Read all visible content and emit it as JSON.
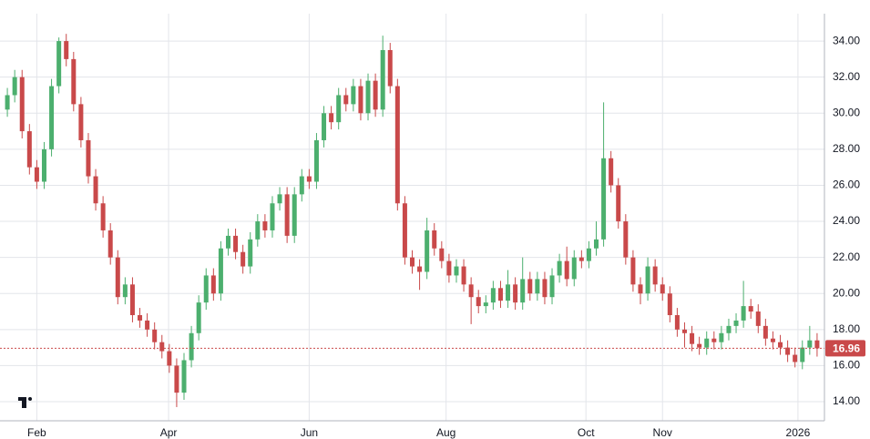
{
  "chart_data": {
    "type": "candlestick",
    "x": [
      1,
      2,
      3,
      4,
      5,
      6,
      7,
      8,
      9,
      10,
      11,
      12,
      13,
      14,
      15,
      16,
      17,
      18,
      19,
      20,
      21,
      22,
      23,
      24,
      25,
      26,
      27,
      28,
      29,
      30,
      31,
      32,
      33,
      34,
      35,
      36,
      37,
      38,
      39,
      40,
      41,
      42,
      43,
      44,
      45,
      46,
      47,
      48,
      49,
      50,
      51,
      52,
      53,
      54,
      55,
      56,
      57,
      58,
      59,
      60,
      61,
      62,
      63,
      64,
      65,
      66,
      67,
      68,
      69,
      70,
      71,
      72,
      73,
      74,
      75,
      76,
      77,
      78,
      79,
      80,
      81,
      82,
      83,
      84,
      85,
      86,
      87,
      88,
      89,
      90,
      91,
      92,
      93,
      94,
      95,
      96,
      97,
      98,
      99,
      100,
      101,
      102,
      103,
      104,
      105,
      106,
      107,
      108,
      109,
      110,
      111
    ],
    "open": [
      30.2,
      31.0,
      32.0,
      29.0,
      27.0,
      26.2,
      28.0,
      31.5,
      34.0,
      33.0,
      30.5,
      28.5,
      26.5,
      25.0,
      23.5,
      22.0,
      19.8,
      20.5,
      18.8,
      18.5,
      18.0,
      17.3,
      16.8,
      16.0,
      14.5,
      16.3,
      17.8,
      19.5,
      21.0,
      20.0,
      22.5,
      23.2,
      22.3,
      21.5,
      23.0,
      24.0,
      23.5,
      25.0,
      25.5,
      23.2,
      25.5,
      26.5,
      26.2,
      28.5,
      30.0,
      29.5,
      31.0,
      30.5,
      31.5,
      30.0,
      31.8,
      30.2,
      33.5,
      31.5,
      25.0,
      22.0,
      21.5,
      21.2,
      23.5,
      22.5,
      21.8,
      21.0,
      21.5,
      20.5,
      19.8,
      19.3,
      19.5,
      20.3,
      19.6,
      20.5,
      19.5,
      20.8,
      20.0,
      20.8,
      19.8,
      21.0,
      21.8,
      20.8,
      22.0,
      21.8,
      22.5,
      23.0,
      27.5,
      26.0,
      24.0,
      22.0,
      20.5,
      20.0,
      21.5,
      20.5,
      20.0,
      18.8,
      18.0,
      17.8,
      17.2,
      17.0,
      17.5,
      17.3,
      17.8,
      18.2,
      18.5,
      19.3,
      19.0,
      18.2,
      17.5,
      17.3,
      17.0,
      16.6,
      16.2,
      17.0,
      17.4
    ],
    "high": [
      31.4,
      32.4,
      32.4,
      29.4,
      27.4,
      28.4,
      31.9,
      34.2,
      34.4,
      33.4,
      30.9,
      28.9,
      26.9,
      25.4,
      23.9,
      22.4,
      20.9,
      20.9,
      19.2,
      18.9,
      18.4,
      17.7,
      17.2,
      16.4,
      16.7,
      18.2,
      19.9,
      21.4,
      21.4,
      22.9,
      23.6,
      23.6,
      22.7,
      23.4,
      24.4,
      24.4,
      25.4,
      25.9,
      25.9,
      25.9,
      26.9,
      26.9,
      28.9,
      30.4,
      30.4,
      31.4,
      31.4,
      31.9,
      31.9,
      32.2,
      32.2,
      34.3,
      33.9,
      31.9,
      25.4,
      22.4,
      21.9,
      24.2,
      23.9,
      22.9,
      22.2,
      21.9,
      21.9,
      20.9,
      20.2,
      19.9,
      20.7,
      20.7,
      21.3,
      20.9,
      22.0,
      21.2,
      21.2,
      21.2,
      21.4,
      22.2,
      22.6,
      22.4,
      22.4,
      22.9,
      24.0,
      30.6,
      27.9,
      26.4,
      24.4,
      22.4,
      20.9,
      22.0,
      21.9,
      20.9,
      20.4,
      19.2,
      18.4,
      18.2,
      17.6,
      17.9,
      17.9,
      18.2,
      18.6,
      18.9,
      20.7,
      19.7,
      19.4,
      18.6,
      17.9,
      17.7,
      17.4,
      17.0,
      17.4,
      18.2,
      17.8
    ],
    "low": [
      29.8,
      30.6,
      28.6,
      26.6,
      25.8,
      25.8,
      27.6,
      31.1,
      32.6,
      30.1,
      28.1,
      26.1,
      24.6,
      23.1,
      21.6,
      19.4,
      19.4,
      18.4,
      18.1,
      17.6,
      16.9,
      16.4,
      15.6,
      13.7,
      14.1,
      15.9,
      17.4,
      19.1,
      19.6,
      19.6,
      22.1,
      21.9,
      21.1,
      21.1,
      22.6,
      23.1,
      23.1,
      24.6,
      22.8,
      22.8,
      25.1,
      25.8,
      25.8,
      28.1,
      29.1,
      29.1,
      30.1,
      30.1,
      29.6,
      29.6,
      29.8,
      29.8,
      31.1,
      24.6,
      21.6,
      21.1,
      20.2,
      20.8,
      22.1,
      21.4,
      20.6,
      20.6,
      20.1,
      18.3,
      18.9,
      18.9,
      19.1,
      19.2,
      19.2,
      19.1,
      19.1,
      19.6,
      19.6,
      19.4,
      19.4,
      20.6,
      20.4,
      20.4,
      21.4,
      21.4,
      22.1,
      22.6,
      25.6,
      23.6,
      21.6,
      20.1,
      19.4,
      19.6,
      20.1,
      19.6,
      18.4,
      17.6,
      17.0,
      16.8,
      16.6,
      16.6,
      16.9,
      16.9,
      17.4,
      17.8,
      18.1,
      18.6,
      17.8,
      17.1,
      16.9,
      16.6,
      16.2,
      15.9,
      15.8,
      16.6,
      16.5
    ],
    "close": [
      31.0,
      32.0,
      29.0,
      27.0,
      26.2,
      28.0,
      31.5,
      34.0,
      33.0,
      30.5,
      28.5,
      26.5,
      25.0,
      23.5,
      22.0,
      19.8,
      20.5,
      18.8,
      18.5,
      18.0,
      17.3,
      16.8,
      16.0,
      14.5,
      16.3,
      17.8,
      19.5,
      21.0,
      20.0,
      22.5,
      23.2,
      22.3,
      21.5,
      23.0,
      24.0,
      23.5,
      25.0,
      25.5,
      23.2,
      25.5,
      26.5,
      26.2,
      28.5,
      30.0,
      29.5,
      31.0,
      30.5,
      31.5,
      30.0,
      31.8,
      30.2,
      33.5,
      31.5,
      25.0,
      22.0,
      21.5,
      21.2,
      23.5,
      22.5,
      21.8,
      21.0,
      21.5,
      20.5,
      19.8,
      19.3,
      19.5,
      20.3,
      19.6,
      20.5,
      19.5,
      20.8,
      20.0,
      20.8,
      19.8,
      21.0,
      21.8,
      20.8,
      22.0,
      21.8,
      22.5,
      23.0,
      27.5,
      26.0,
      24.0,
      22.0,
      20.5,
      20.0,
      21.5,
      20.5,
      20.0,
      18.8,
      18.0,
      17.8,
      17.2,
      17.0,
      17.5,
      17.3,
      17.8,
      18.2,
      18.5,
      19.3,
      19.0,
      18.2,
      17.5,
      17.3,
      17.0,
      16.6,
      16.2,
      17.0,
      17.4,
      16.96
    ],
    "up_color": "#4caf6e",
    "down_color": "#c9494a",
    "xlim": [
      0,
      112
    ],
    "ylim": [
      12.94,
      35.52
    ],
    "xticks": [
      {
        "value": 5,
        "label": "Feb"
      },
      {
        "value": 22.9,
        "label": "Apr"
      },
      {
        "value": 42,
        "label": "Jun"
      },
      {
        "value": 60.6,
        "label": "Aug"
      },
      {
        "value": 79.6,
        "label": "Oct"
      },
      {
        "value": 90,
        "label": "Nov"
      },
      {
        "value": 108.4,
        "label": "2026"
      }
    ],
    "yticks": [
      {
        "value": 14,
        "label": "14.00"
      },
      {
        "value": 16,
        "label": "16.00"
      },
      {
        "value": 18,
        "label": "18.00"
      },
      {
        "value": 20,
        "label": "20.00"
      },
      {
        "value": 22,
        "label": "22.00"
      },
      {
        "value": 24,
        "label": "24.00"
      },
      {
        "value": 26,
        "label": "26.00"
      },
      {
        "value": 28,
        "label": "28.00"
      },
      {
        "value": 30,
        "label": "30.00"
      },
      {
        "value": 32,
        "label": "32.00"
      },
      {
        "value": 34,
        "label": "34.00"
      }
    ],
    "grid": true
  }
}
